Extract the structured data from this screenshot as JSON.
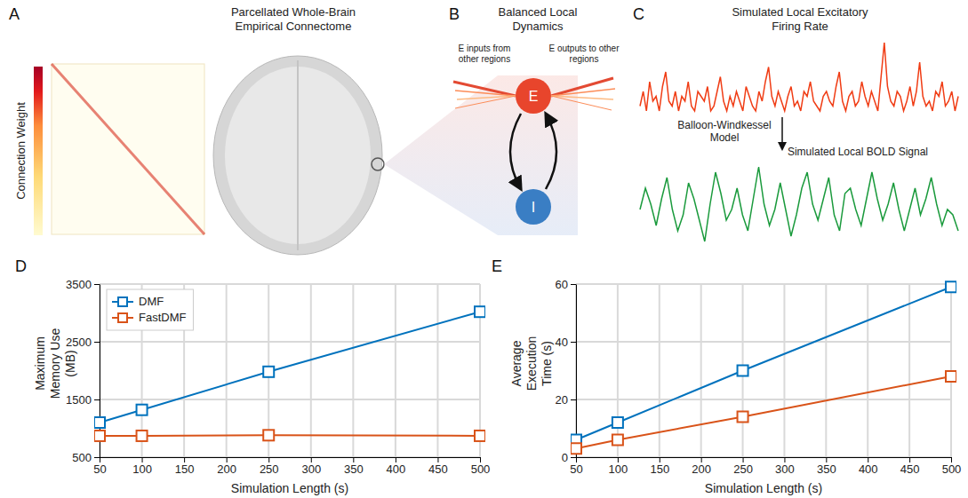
{
  "panels": {
    "A": {
      "letter": "A",
      "title": "Parcellated Whole-Brain Empirical Connectome",
      "colorbar_label": "Connection Weight"
    },
    "B": {
      "letter": "B",
      "title": "Balanced Local Dynamics",
      "inputs_label": "E inputs from other regions",
      "outputs_label": "E outputs to other regions",
      "excitatory": "E",
      "inhibitory": "I"
    },
    "C": {
      "letter": "C",
      "title": "Simulated Local Excitatory Firing Rate",
      "transform_label": "Balloon-Windkessel Model",
      "bold_title": "Simulated Local BOLD Signal",
      "firing_rate": [
        0.35,
        0.5,
        0.3,
        0.6,
        0.4,
        0.45,
        0.3,
        0.55,
        0.7,
        0.4,
        0.35,
        0.5,
        0.3,
        0.45,
        0.4,
        0.6,
        0.35,
        0.3,
        0.5,
        0.45,
        0.4,
        0.55,
        0.3,
        0.35,
        0.5,
        0.65,
        0.4,
        0.3,
        0.45,
        0.35,
        0.5,
        0.4,
        0.3,
        0.55,
        0.45,
        0.35,
        0.3,
        0.5,
        0.4,
        0.6,
        0.75,
        0.45,
        0.35,
        0.5,
        0.4,
        0.3,
        0.45,
        0.55,
        0.35,
        0.4,
        0.3,
        0.5,
        0.45,
        0.6,
        0.4,
        0.35,
        0.3,
        0.45,
        0.5,
        0.4,
        0.35,
        0.55,
        0.7,
        0.4,
        0.3,
        0.45,
        0.5,
        0.35,
        0.4,
        0.6,
        0.45,
        0.35,
        0.5,
        0.4,
        0.3,
        0.65,
        1.0,
        0.55,
        0.4,
        0.35,
        0.5,
        0.45,
        0.3,
        0.4,
        0.55,
        0.35,
        0.5,
        0.8,
        0.45,
        0.35,
        0.4,
        0.3,
        0.5,
        0.45,
        0.6,
        0.35,
        0.4,
        0.5,
        0.3,
        0.45
      ],
      "bold_signal": [
        0.5,
        0.7,
        0.55,
        0.35,
        0.6,
        0.8,
        0.5,
        0.3,
        0.45,
        0.75,
        0.6,
        0.4,
        0.2,
        0.55,
        0.85,
        0.65,
        0.4,
        0.5,
        0.7,
        0.45,
        0.3,
        0.6,
        0.9,
        0.55,
        0.35,
        0.5,
        0.75,
        0.5,
        0.25,
        0.45,
        0.7,
        0.85,
        0.55,
        0.4,
        0.6,
        0.8,
        0.45,
        0.3,
        0.65,
        0.7,
        0.5,
        0.35,
        0.6,
        0.85,
        0.6,
        0.4,
        0.55,
        0.75,
        0.5,
        0.3,
        0.5,
        0.7,
        0.45,
        0.6,
        0.8,
        0.55,
        0.35,
        0.5,
        0.45,
        0.3
      ]
    }
  },
  "chart_data": [
    {
      "type": "line",
      "panel_label": "D",
      "xlabel": "Simulation Length (s)",
      "ylabel": "Maximum Memory Use (MB)",
      "x": [
        50,
        100,
        250,
        500
      ],
      "series": [
        {
          "name": "DMF",
          "color": "#0072bd",
          "marker": "square",
          "values": [
            1100,
            1320,
            1980,
            3020
          ]
        },
        {
          "name": "FastDMF",
          "color": "#d95319",
          "marker": "square",
          "values": [
            870,
            870,
            880,
            870
          ]
        }
      ],
      "xlim": [
        50,
        500
      ],
      "ylim": [
        500,
        3500
      ],
      "xticks": [
        50,
        100,
        150,
        200,
        250,
        300,
        350,
        400,
        450,
        500
      ],
      "yticks": [
        500,
        1500,
        2500,
        3500
      ],
      "grid": true,
      "legend": "upper left"
    },
    {
      "type": "line",
      "panel_label": "E",
      "xlabel": "Simulation Length (s)",
      "ylabel": "Average Execution Time (s)",
      "x": [
        50,
        100,
        250,
        500
      ],
      "series": [
        {
          "color": "#0072bd",
          "marker": "square",
          "values": [
            6,
            12,
            30,
            59
          ]
        },
        {
          "color": "#d95319",
          "marker": "square",
          "values": [
            3,
            6,
            14,
            28
          ]
        }
      ],
      "xlim": [
        50,
        500
      ],
      "ylim": [
        0,
        60
      ],
      "xticks": [
        50,
        100,
        150,
        200,
        250,
        300,
        350,
        400,
        450,
        500
      ],
      "yticks": [
        0,
        20,
        40,
        60
      ],
      "grid": true
    }
  ]
}
